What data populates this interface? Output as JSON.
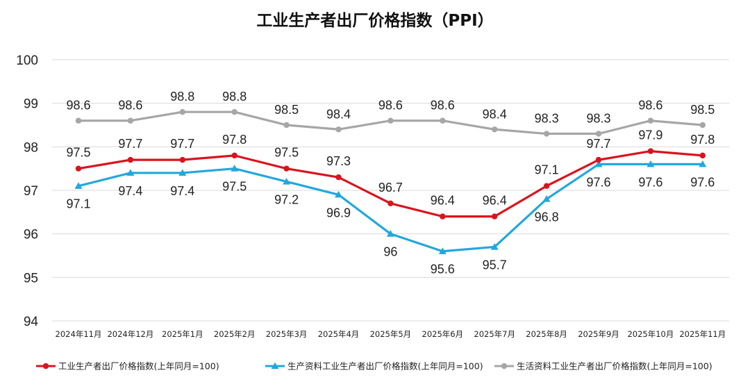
{
  "chart_data": {
    "type": "line",
    "title": "工业生产者出厂价格指数（PPI）",
    "xlabel": "",
    "ylabel": "",
    "ylim": [
      94,
      100
    ],
    "yticks": [
      "94",
      "95",
      "96",
      "97",
      "98",
      "99",
      "100"
    ],
    "grid": true,
    "legend_position": "bottom",
    "categories": [
      "2024年11月",
      "2024年12月",
      "2025年1月",
      "2025年2月",
      "2025年3月",
      "2025年4月",
      "2025年5月",
      "2025年6月",
      "2025年7月",
      "2025年8月",
      "2025年9月",
      "2025年10月",
      "2025年11月"
    ],
    "series": [
      {
        "name": "工业生产者出厂价格指数(上年同月=100)",
        "color": "#d9141d",
        "marker": "circle",
        "values": [
          97.5,
          97.7,
          97.7,
          97.8,
          97.5,
          97.3,
          96.7,
          96.4,
          96.4,
          97.1,
          97.7,
          97.9,
          97.8
        ],
        "labels": [
          "97.5",
          "97.7",
          "97.7",
          "97.8",
          "97.5",
          "97.3",
          "96.7",
          "96.4",
          "96.4",
          "97.1",
          "97.7",
          "97.9",
          "97.8"
        ]
      },
      {
        "name": "生产资料工业生产者出厂价格指数(上年同月=100)",
        "color": "#22a7dd",
        "marker": "triangle",
        "values": [
          97.1,
          97.4,
          97.4,
          97.5,
          97.2,
          96.9,
          96.0,
          95.6,
          95.7,
          96.8,
          97.6,
          97.6,
          97.6
        ],
        "labels": [
          "97.1",
          "97.4",
          "97.4",
          "97.5",
          "97.2",
          "96.9",
          "96",
          "95.6",
          "95.7",
          "96.8",
          "97.6",
          "97.6",
          "97.6"
        ]
      },
      {
        "name": "生活资料工业生产者出厂价格指数(上年同月=100)",
        "color": "#a6a6a6",
        "marker": "circle",
        "values": [
          98.6,
          98.6,
          98.8,
          98.8,
          98.5,
          98.4,
          98.6,
          98.6,
          98.4,
          98.3,
          98.3,
          98.6,
          98.5
        ],
        "labels": [
          "98.6",
          "98.6",
          "98.8",
          "98.8",
          "98.5",
          "98.4",
          "98.6",
          "98.6",
          "98.4",
          "98.3",
          "98.3",
          "98.6",
          "98.5"
        ]
      }
    ]
  }
}
